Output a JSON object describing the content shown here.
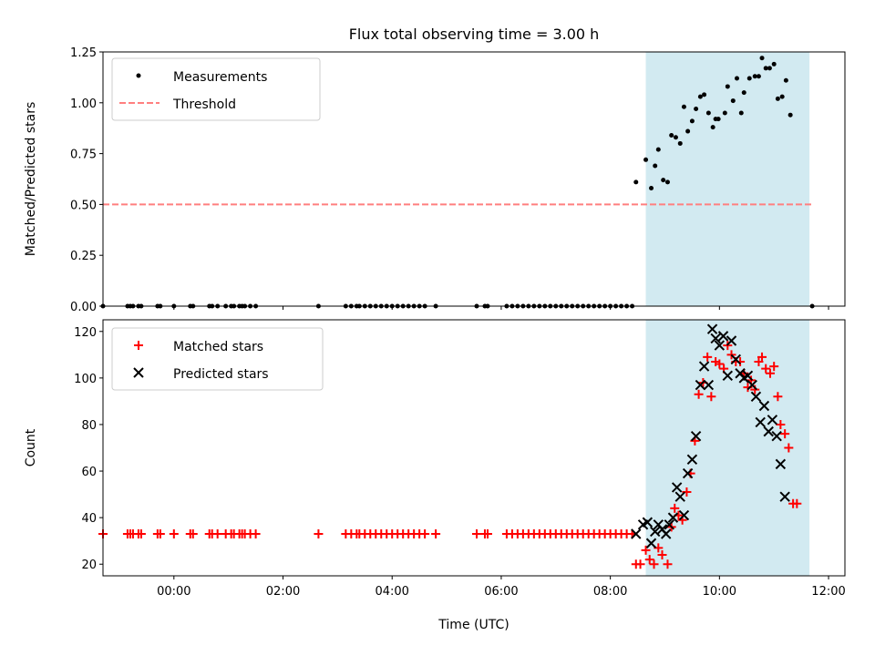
{
  "chart_data": [
    {
      "type": "scatter",
      "title": "Flux total observing time = 3.00 h",
      "xlabel": "",
      "ylabel": "Matched/Predicted stars",
      "x_unit": "hours (UTC)",
      "xlim": [
        -1.3,
        12.3
      ],
      "ylim": [
        0,
        1.25
      ],
      "yticks": [
        0.0,
        0.25,
        0.5,
        0.75,
        1.0,
        1.25
      ],
      "ytick_labels": [
        "0.00",
        "0.25",
        "0.50",
        "0.75",
        "1.00",
        "1.25"
      ],
      "xticks": [
        0,
        2,
        4,
        6,
        8,
        10,
        12
      ],
      "shaded_region": {
        "x": [
          8.65,
          11.65
        ],
        "color": "#add8e6"
      },
      "legend": {
        "placement": "top-left",
        "entries": [
          "Measurements",
          "Threshold"
        ]
      },
      "series": [
        {
          "name": "Measurements",
          "marker": "dot",
          "color": "#000000",
          "points": [
            [
              -1.3,
              0
            ],
            [
              -0.85,
              0
            ],
            [
              -0.8,
              0
            ],
            [
              -0.75,
              0
            ],
            [
              -0.65,
              0
            ],
            [
              -0.6,
              0
            ],
            [
              -0.3,
              0
            ],
            [
              -0.25,
              0
            ],
            [
              0.0,
              0
            ],
            [
              0.3,
              0
            ],
            [
              0.35,
              0
            ],
            [
              0.65,
              0
            ],
            [
              0.7,
              0
            ],
            [
              0.8,
              0
            ],
            [
              0.95,
              0
            ],
            [
              1.05,
              0
            ],
            [
              1.1,
              0
            ],
            [
              1.2,
              0
            ],
            [
              1.25,
              0
            ],
            [
              1.3,
              0
            ],
            [
              1.4,
              0
            ],
            [
              1.5,
              0
            ],
            [
              2.65,
              0
            ],
            [
              3.15,
              0
            ],
            [
              3.25,
              0
            ],
            [
              3.35,
              0
            ],
            [
              3.4,
              0
            ],
            [
              3.5,
              0
            ],
            [
              3.6,
              0
            ],
            [
              3.7,
              0
            ],
            [
              3.8,
              0
            ],
            [
              3.9,
              0
            ],
            [
              4.0,
              0
            ],
            [
              4.1,
              0
            ],
            [
              4.2,
              0
            ],
            [
              4.3,
              0
            ],
            [
              4.4,
              0
            ],
            [
              4.5,
              0
            ],
            [
              4.6,
              0
            ],
            [
              4.8,
              0
            ],
            [
              5.55,
              0
            ],
            [
              5.7,
              0
            ],
            [
              5.75,
              0
            ],
            [
              6.1,
              0
            ],
            [
              6.2,
              0
            ],
            [
              6.3,
              0
            ],
            [
              6.4,
              0
            ],
            [
              6.5,
              0
            ],
            [
              6.6,
              0
            ],
            [
              6.7,
              0
            ],
            [
              6.8,
              0
            ],
            [
              6.9,
              0
            ],
            [
              7.0,
              0
            ],
            [
              7.1,
              0
            ],
            [
              7.2,
              0
            ],
            [
              7.3,
              0
            ],
            [
              7.4,
              0
            ],
            [
              7.5,
              0
            ],
            [
              7.6,
              0
            ],
            [
              7.7,
              0
            ],
            [
              7.8,
              0
            ],
            [
              7.9,
              0
            ],
            [
              8.0,
              0
            ],
            [
              8.1,
              0
            ],
            [
              8.2,
              0
            ],
            [
              8.3,
              0
            ],
            [
              8.4,
              0
            ],
            [
              8.47,
              0.61
            ],
            [
              8.65,
              0.72
            ],
            [
              8.75,
              0.58
            ],
            [
              8.82,
              0.69
            ],
            [
              8.88,
              0.77
            ],
            [
              8.97,
              0.62
            ],
            [
              9.05,
              0.61
            ],
            [
              9.12,
              0.84
            ],
            [
              9.2,
              0.83
            ],
            [
              9.28,
              0.8
            ],
            [
              9.35,
              0.98
            ],
            [
              9.42,
              0.86
            ],
            [
              9.5,
              0.91
            ],
            [
              9.57,
              0.97
            ],
            [
              9.65,
              1.03
            ],
            [
              9.72,
              1.04
            ],
            [
              9.8,
              0.95
            ],
            [
              9.88,
              0.88
            ],
            [
              9.93,
              0.92
            ],
            [
              9.98,
              0.92
            ],
            [
              10.1,
              0.95
            ],
            [
              10.15,
              1.08
            ],
            [
              10.25,
              1.01
            ],
            [
              10.32,
              1.12
            ],
            [
              10.4,
              0.95
            ],
            [
              10.45,
              1.05
            ],
            [
              10.55,
              1.12
            ],
            [
              10.65,
              1.13
            ],
            [
              10.72,
              1.13
            ],
            [
              10.78,
              1.22
            ],
            [
              10.85,
              1.17
            ],
            [
              10.92,
              1.17
            ],
            [
              11.0,
              1.19
            ],
            [
              11.07,
              1.02
            ],
            [
              11.15,
              1.03
            ],
            [
              11.22,
              1.11
            ],
            [
              11.3,
              0.94
            ],
            [
              11.7,
              0
            ]
          ]
        },
        {
          "name": "Threshold",
          "marker": "dashed-line",
          "color": "#ff7f7f",
          "y": 0.5,
          "x_range": [
            -1.3,
            11.7
          ]
        }
      ]
    },
    {
      "type": "scatter",
      "title": "",
      "xlabel": "Time (UTC)",
      "ylabel": "Count",
      "x_unit": "hours (UTC)",
      "xlim": [
        -1.3,
        12.3
      ],
      "ylim": [
        15,
        125
      ],
      "yticks": [
        20,
        40,
        60,
        80,
        100,
        120
      ],
      "xticks": [
        0,
        2,
        4,
        6,
        8,
        10,
        12
      ],
      "xtick_labels": [
        "00:00",
        "02:00",
        "04:00",
        "06:00",
        "08:00",
        "10:00",
        "12:00"
      ],
      "shaded_region": {
        "x": [
          8.65,
          11.65
        ],
        "color": "#add8e6"
      },
      "legend": {
        "placement": "top-left",
        "entries": [
          "Matched stars",
          "Predicted stars"
        ]
      },
      "series": [
        {
          "name": "Matched stars",
          "marker": "plus",
          "color": "#ff0000",
          "points": [
            [
              -1.3,
              33
            ],
            [
              -0.85,
              33
            ],
            [
              -0.8,
              33
            ],
            [
              -0.75,
              33
            ],
            [
              -0.65,
              33
            ],
            [
              -0.6,
              33
            ],
            [
              -0.3,
              33
            ],
            [
              -0.25,
              33
            ],
            [
              0.0,
              33
            ],
            [
              0.3,
              33
            ],
            [
              0.35,
              33
            ],
            [
              0.65,
              33
            ],
            [
              0.7,
              33
            ],
            [
              0.8,
              33
            ],
            [
              0.95,
              33
            ],
            [
              1.05,
              33
            ],
            [
              1.1,
              33
            ],
            [
              1.2,
              33
            ],
            [
              1.25,
              33
            ],
            [
              1.3,
              33
            ],
            [
              1.4,
              33
            ],
            [
              1.5,
              33
            ],
            [
              2.65,
              33
            ],
            [
              3.15,
              33
            ],
            [
              3.25,
              33
            ],
            [
              3.35,
              33
            ],
            [
              3.4,
              33
            ],
            [
              3.5,
              33
            ],
            [
              3.6,
              33
            ],
            [
              3.7,
              33
            ],
            [
              3.8,
              33
            ],
            [
              3.9,
              33
            ],
            [
              4.0,
              33
            ],
            [
              4.1,
              33
            ],
            [
              4.2,
              33
            ],
            [
              4.3,
              33
            ],
            [
              4.4,
              33
            ],
            [
              4.5,
              33
            ],
            [
              4.6,
              33
            ],
            [
              4.8,
              33
            ],
            [
              5.55,
              33
            ],
            [
              5.7,
              33
            ],
            [
              5.75,
              33
            ],
            [
              6.1,
              33
            ],
            [
              6.2,
              33
            ],
            [
              6.3,
              33
            ],
            [
              6.4,
              33
            ],
            [
              6.5,
              33
            ],
            [
              6.6,
              33
            ],
            [
              6.7,
              33
            ],
            [
              6.8,
              33
            ],
            [
              6.9,
              33
            ],
            [
              7.0,
              33
            ],
            [
              7.1,
              33
            ],
            [
              7.2,
              33
            ],
            [
              7.3,
              33
            ],
            [
              7.4,
              33
            ],
            [
              7.5,
              33
            ],
            [
              7.6,
              33
            ],
            [
              7.7,
              33
            ],
            [
              7.8,
              33
            ],
            [
              7.9,
              33
            ],
            [
              8.0,
              33
            ],
            [
              8.1,
              33
            ],
            [
              8.2,
              33
            ],
            [
              8.3,
              33
            ],
            [
              8.4,
              33
            ],
            [
              8.47,
              20
            ],
            [
              8.55,
              20
            ],
            [
              8.65,
              26
            ],
            [
              8.72,
              22
            ],
            [
              8.8,
              20
            ],
            [
              8.88,
              27
            ],
            [
              8.95,
              24
            ],
            [
              9.05,
              20
            ],
            [
              9.12,
              36
            ],
            [
              9.18,
              44
            ],
            [
              9.25,
              41
            ],
            [
              9.32,
              39
            ],
            [
              9.4,
              51
            ],
            [
              9.47,
              59
            ],
            [
              9.55,
              73
            ],
            [
              9.62,
              93
            ],
            [
              9.7,
              98
            ],
            [
              9.78,
              109
            ],
            [
              9.85,
              92
            ],
            [
              9.93,
              107
            ],
            [
              10.0,
              106
            ],
            [
              10.08,
              104
            ],
            [
              10.15,
              114
            ],
            [
              10.22,
              110
            ],
            [
              10.3,
              107
            ],
            [
              10.38,
              107
            ],
            [
              10.45,
              102
            ],
            [
              10.52,
              96
            ],
            [
              10.58,
              99
            ],
            [
              10.65,
              95
            ],
            [
              10.72,
              107
            ],
            [
              10.78,
              109
            ],
            [
              10.85,
              104
            ],
            [
              10.93,
              102
            ],
            [
              11.0,
              105
            ],
            [
              11.07,
              92
            ],
            [
              11.12,
              80
            ],
            [
              11.2,
              76
            ],
            [
              11.27,
              70
            ],
            [
              11.35,
              46
            ],
            [
              11.42,
              46
            ]
          ]
        },
        {
          "name": "Predicted stars",
          "marker": "x",
          "color": "#000000",
          "points": [
            [
              8.47,
              33
            ],
            [
              8.6,
              37
            ],
            [
              8.68,
              38
            ],
            [
              8.75,
              29
            ],
            [
              8.82,
              34
            ],
            [
              8.88,
              37
            ],
            [
              8.95,
              35
            ],
            [
              9.02,
              33
            ],
            [
              9.08,
              37
            ],
            [
              9.15,
              40
            ],
            [
              9.22,
              53
            ],
            [
              9.28,
              49
            ],
            [
              9.35,
              41
            ],
            [
              9.42,
              59
            ],
            [
              9.5,
              65
            ],
            [
              9.57,
              75
            ],
            [
              9.65,
              97
            ],
            [
              9.72,
              105
            ],
            [
              9.8,
              97
            ],
            [
              9.87,
              121
            ],
            [
              9.93,
              117
            ],
            [
              10.0,
              114
            ],
            [
              10.07,
              118
            ],
            [
              10.15,
              101
            ],
            [
              10.22,
              116
            ],
            [
              10.3,
              108
            ],
            [
              10.38,
              102
            ],
            [
              10.45,
              100
            ],
            [
              10.52,
              101
            ],
            [
              10.6,
              97
            ],
            [
              10.67,
              92
            ],
            [
              10.75,
              81
            ],
            [
              10.82,
              88
            ],
            [
              10.9,
              77
            ],
            [
              10.97,
              82
            ],
            [
              11.05,
              75
            ],
            [
              11.12,
              63
            ],
            [
              11.2,
              49
            ]
          ]
        }
      ]
    }
  ]
}
